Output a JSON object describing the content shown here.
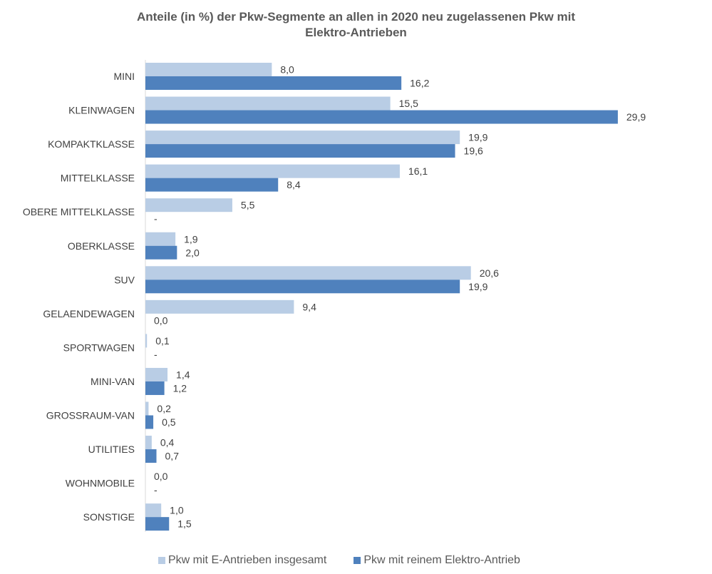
{
  "chart_data": {
    "type": "bar",
    "orientation": "horizontal",
    "title_lines": [
      "Anteile (in %) der Pkw-Segmente an allen in 2020 neu zugelassenen Pkw mit",
      "Elektro-Antrieben"
    ],
    "categories": [
      "MINI",
      "KLEINWAGEN",
      "KOMPAKTKLASSE",
      "MITTELKLASSE",
      "OBERE MITTELKLASSE",
      "OBERKLASSE",
      "SUV",
      "GELAENDEWAGEN",
      "SPORTWAGEN",
      "MINI-VAN",
      "GROSSRAUM-VAN",
      "UTILITIES",
      "WOHNMOBILE",
      "SONSTIGE"
    ],
    "series": [
      {
        "name": "Pkw mit E-Antrieben insgesamt",
        "color": "#b9cde5",
        "values": [
          8.0,
          15.5,
          19.9,
          16.1,
          5.5,
          1.9,
          20.6,
          9.4,
          0.1,
          1.4,
          0.2,
          0.4,
          0.0,
          1.0
        ],
        "labels": [
          "8,0",
          "15,5",
          "19,9",
          "16,1",
          "5,5",
          "1,9",
          "20,6",
          "9,4",
          "0,1",
          "1,4",
          "0,2",
          "0,4",
          "0,0",
          "1,0"
        ]
      },
      {
        "name": "Pkw mit reinem Elektro-Antrieb",
        "color": "#4f81bd",
        "values": [
          16.2,
          29.9,
          19.6,
          8.4,
          null,
          2.0,
          19.9,
          0.0,
          null,
          1.2,
          0.5,
          0.7,
          null,
          1.5
        ],
        "labels": [
          "16,2",
          "29,9",
          "19,6",
          "8,4",
          "-",
          "2,0",
          "19,9",
          "0,0",
          "-",
          "1,2",
          "0,5",
          "0,7",
          "-",
          "1,5"
        ]
      }
    ],
    "xlim": [
      0,
      30
    ],
    "grid": false,
    "legend_position": "bottom"
  }
}
